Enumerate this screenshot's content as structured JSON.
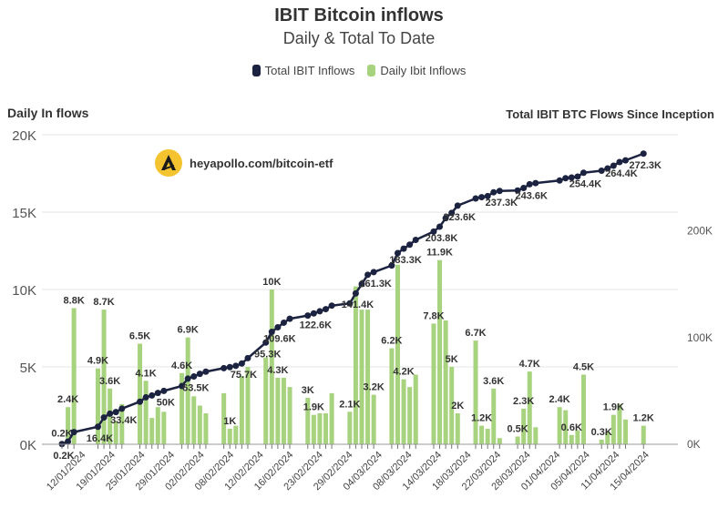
{
  "title": "IBIT Bitcoin inflows",
  "subtitle": "Daily & Total To Date",
  "legend": [
    {
      "label": "Total IBIT Inflows",
      "color": "#1c2340"
    },
    {
      "label": "Daily Ibit Inflows",
      "color": "#a8d37e"
    }
  ],
  "watermark": "heyapollo.com/bitcoin-etf",
  "chart_data": {
    "type": "bar+line",
    "left_axis": {
      "label": "Daily In flows",
      "ticks": [
        "0K",
        "5K",
        "10K",
        "15K",
        "20K"
      ],
      "ylim": [
        0,
        20000
      ]
    },
    "right_axis": {
      "label": "Total IBIT BTC Flows Since Inception",
      "ticks": [
        "0K",
        "100K",
        "200K"
      ],
      "ylim": [
        0,
        290000
      ]
    },
    "x_tick_labels": [
      "12/01/2024",
      "19/01/2024",
      "25/01/2024",
      "29/01/2024",
      "02/02/2024",
      "08/02/2024",
      "12/02/2024",
      "16/02/2024",
      "23/02/2024",
      "29/02/2024",
      "04/03/2024",
      "08/03/2024",
      "14/03/2024",
      "18/03/2024",
      "22/03/2024",
      "28/03/2024",
      "01/04/2024",
      "05/04/2024",
      "11/04/2024",
      "15/04/2024"
    ],
    "daily": [
      {
        "day": 0,
        "value": 200,
        "label": "0.2K"
      },
      {
        "day": 1,
        "value": 2400,
        "label": "2.4K"
      },
      {
        "day": 2,
        "value": 8800,
        "label": "8.8K"
      },
      {
        "day": 6,
        "value": 4900,
        "label": "4.9K"
      },
      {
        "day": 7,
        "value": 8700,
        "label": "8.7K"
      },
      {
        "day": 8,
        "value": 3600,
        "label": "3.6K"
      },
      {
        "day": 9,
        "value": 1500,
        "label": ""
      },
      {
        "day": 10,
        "value": 2600,
        "label": ""
      },
      {
        "day": 13,
        "value": 6500,
        "label": "6.5K"
      },
      {
        "day": 14,
        "value": 4100,
        "label": "4.1K"
      },
      {
        "day": 15,
        "value": 1700,
        "label": ""
      },
      {
        "day": 16,
        "value": 2400,
        "label": ""
      },
      {
        "day": 17,
        "value": 2100,
        "label": ""
      },
      {
        "day": 20,
        "value": 4600,
        "label": "4.6K"
      },
      {
        "day": 21,
        "value": 6900,
        "label": "6.9K"
      },
      {
        "day": 22,
        "value": 3100,
        "label": ""
      },
      {
        "day": 23,
        "value": 2500,
        "label": ""
      },
      {
        "day": 24,
        "value": 2000,
        "label": ""
      },
      {
        "day": 27,
        "value": 3300,
        "label": ""
      },
      {
        "day": 28,
        "value": 1000,
        "label": "1K"
      },
      {
        "day": 29,
        "value": 1200,
        "label": ""
      },
      {
        "day": 30,
        "value": 4400,
        "label": ""
      },
      {
        "day": 31,
        "value": 5000,
        "label": ""
      },
      {
        "day": 34,
        "value": 5600,
        "label": ""
      },
      {
        "day": 35,
        "value": 10000,
        "label": "10K"
      },
      {
        "day": 36,
        "value": 4300,
        "label": "4.3K"
      },
      {
        "day": 37,
        "value": 4300,
        "label": ""
      },
      {
        "day": 38,
        "value": 3700,
        "label": ""
      },
      {
        "day": 41,
        "value": 3000,
        "label": "3K"
      },
      {
        "day": 42,
        "value": 1900,
        "label": "1.9K"
      },
      {
        "day": 43,
        "value": 2000,
        "label": ""
      },
      {
        "day": 44,
        "value": 2000,
        "label": ""
      },
      {
        "day": 45,
        "value": 3300,
        "label": ""
      },
      {
        "day": 48,
        "value": 2100,
        "label": "2.1K"
      },
      {
        "day": 49,
        "value": 10200,
        "label": ""
      },
      {
        "day": 50,
        "value": 8700,
        "label": ""
      },
      {
        "day": 51,
        "value": 8700,
        "label": ""
      },
      {
        "day": 52,
        "value": 3200,
        "label": "3.2K"
      },
      {
        "day": 55,
        "value": 6200,
        "label": "6.2K"
      },
      {
        "day": 56,
        "value": 11600,
        "label": ""
      },
      {
        "day": 57,
        "value": 4200,
        "label": "4.2K"
      },
      {
        "day": 58,
        "value": 3700,
        "label": ""
      },
      {
        "day": 59,
        "value": 4500,
        "label": ""
      },
      {
        "day": 62,
        "value": 7800,
        "label": "7.8K"
      },
      {
        "day": 63,
        "value": 11900,
        "label": "11.9K"
      },
      {
        "day": 64,
        "value": 8000,
        "label": ""
      },
      {
        "day": 65,
        "value": 5000,
        "label": "5K"
      },
      {
        "day": 66,
        "value": 2000,
        "label": "2K"
      },
      {
        "day": 69,
        "value": 6700,
        "label": "6.7K"
      },
      {
        "day": 70,
        "value": 1200,
        "label": "1.2K"
      },
      {
        "day": 71,
        "value": 1000,
        "label": ""
      },
      {
        "day": 72,
        "value": 3600,
        "label": "3.6K"
      },
      {
        "day": 73,
        "value": 400,
        "label": ""
      },
      {
        "day": 76,
        "value": 500,
        "label": "0.5K"
      },
      {
        "day": 77,
        "value": 2300,
        "label": "2.3K"
      },
      {
        "day": 78,
        "value": 4700,
        "label": "4.7K"
      },
      {
        "day": 79,
        "value": 1100,
        "label": ""
      },
      {
        "day": 83,
        "value": 2400,
        "label": "2.4K"
      },
      {
        "day": 84,
        "value": 2200,
        "label": ""
      },
      {
        "day": 85,
        "value": 600,
        "label": "0.6K"
      },
      {
        "day": 86,
        "value": 900,
        "label": ""
      },
      {
        "day": 87,
        "value": 4500,
        "label": "4.5K"
      },
      {
        "day": 90,
        "value": 300,
        "label": "0.3K"
      },
      {
        "day": 91,
        "value": 800,
        "label": ""
      },
      {
        "day": 92,
        "value": 1900,
        "label": "1.9K"
      },
      {
        "day": 93,
        "value": 2600,
        "label": ""
      },
      {
        "day": 94,
        "value": 1600,
        "label": ""
      },
      {
        "day": 97,
        "value": 1200,
        "label": "1.2K"
      }
    ],
    "total": [
      {
        "day": 0,
        "value": 200,
        "label": "0.2K"
      },
      {
        "day": 1,
        "value": 2600,
        "label": ""
      },
      {
        "day": 2,
        "value": 11400,
        "label": ""
      },
      {
        "day": 6,
        "value": 16400,
        "label": "16.4K"
      },
      {
        "day": 7,
        "value": 25100,
        "label": ""
      },
      {
        "day": 8,
        "value": 28700,
        "label": ""
      },
      {
        "day": 9,
        "value": 30200,
        "label": ""
      },
      {
        "day": 10,
        "value": 33400,
        "label": "33.4K"
      },
      {
        "day": 13,
        "value": 39900,
        "label": ""
      },
      {
        "day": 14,
        "value": 44000,
        "label": ""
      },
      {
        "day": 15,
        "value": 45700,
        "label": ""
      },
      {
        "day": 16,
        "value": 48100,
        "label": ""
      },
      {
        "day": 17,
        "value": 50000,
        "label": "50K"
      },
      {
        "day": 20,
        "value": 54600,
        "label": ""
      },
      {
        "day": 21,
        "value": 61500,
        "label": ""
      },
      {
        "day": 22,
        "value": 63500,
        "label": "63.5K"
      },
      {
        "day": 23,
        "value": 66000,
        "label": ""
      },
      {
        "day": 24,
        "value": 68000,
        "label": ""
      },
      {
        "day": 27,
        "value": 71300,
        "label": ""
      },
      {
        "day": 28,
        "value": 72300,
        "label": ""
      },
      {
        "day": 29,
        "value": 73500,
        "label": ""
      },
      {
        "day": 30,
        "value": 75700,
        "label": "75.7K"
      },
      {
        "day": 31,
        "value": 80700,
        "label": ""
      },
      {
        "day": 34,
        "value": 95300,
        "label": "95.3K"
      },
      {
        "day": 35,
        "value": 105300,
        "label": ""
      },
      {
        "day": 36,
        "value": 109600,
        "label": "109.6K"
      },
      {
        "day": 37,
        "value": 113900,
        "label": ""
      },
      {
        "day": 38,
        "value": 117600,
        "label": ""
      },
      {
        "day": 41,
        "value": 120600,
        "label": ""
      },
      {
        "day": 42,
        "value": 122600,
        "label": "122.6K"
      },
      {
        "day": 43,
        "value": 124600,
        "label": ""
      },
      {
        "day": 44,
        "value": 126600,
        "label": ""
      },
      {
        "day": 45,
        "value": 129900,
        "label": ""
      },
      {
        "day": 48,
        "value": 132000,
        "label": ""
      },
      {
        "day": 49,
        "value": 141400,
        "label": "141.4K"
      },
      {
        "day": 50,
        "value": 150100,
        "label": ""
      },
      {
        "day": 51,
        "value": 158800,
        "label": ""
      },
      {
        "day": 52,
        "value": 161300,
        "label": "161.3K"
      },
      {
        "day": 55,
        "value": 167500,
        "label": ""
      },
      {
        "day": 56,
        "value": 179100,
        "label": ""
      },
      {
        "day": 57,
        "value": 183300,
        "label": "183.3K"
      },
      {
        "day": 58,
        "value": 187000,
        "label": ""
      },
      {
        "day": 59,
        "value": 191500,
        "label": ""
      },
      {
        "day": 62,
        "value": 199300,
        "label": ""
      },
      {
        "day": 63,
        "value": 203800,
        "label": "203.8K"
      },
      {
        "day": 64,
        "value": 211800,
        "label": ""
      },
      {
        "day": 65,
        "value": 216800,
        "label": ""
      },
      {
        "day": 66,
        "value": 223600,
        "label": "223.6K"
      },
      {
        "day": 69,
        "value": 230300,
        "label": ""
      },
      {
        "day": 70,
        "value": 231500,
        "label": ""
      },
      {
        "day": 71,
        "value": 232500,
        "label": ""
      },
      {
        "day": 72,
        "value": 236100,
        "label": ""
      },
      {
        "day": 73,
        "value": 237300,
        "label": "237.3K"
      },
      {
        "day": 76,
        "value": 237800,
        "label": ""
      },
      {
        "day": 77,
        "value": 240100,
        "label": ""
      },
      {
        "day": 78,
        "value": 243600,
        "label": "243.6K"
      },
      {
        "day": 79,
        "value": 244700,
        "label": ""
      },
      {
        "day": 83,
        "value": 247100,
        "label": ""
      },
      {
        "day": 84,
        "value": 249300,
        "label": ""
      },
      {
        "day": 85,
        "value": 249900,
        "label": ""
      },
      {
        "day": 86,
        "value": 250800,
        "label": ""
      },
      {
        "day": 87,
        "value": 254400,
        "label": "254.4K"
      },
      {
        "day": 90,
        "value": 256300,
        "label": ""
      },
      {
        "day": 91,
        "value": 258400,
        "label": ""
      },
      {
        "day": 92,
        "value": 261000,
        "label": ""
      },
      {
        "day": 93,
        "value": 264400,
        "label": "264.4K"
      },
      {
        "day": 94,
        "value": 266000,
        "label": ""
      },
      {
        "day": 97,
        "value": 272300,
        "label": "272.3K"
      }
    ]
  }
}
